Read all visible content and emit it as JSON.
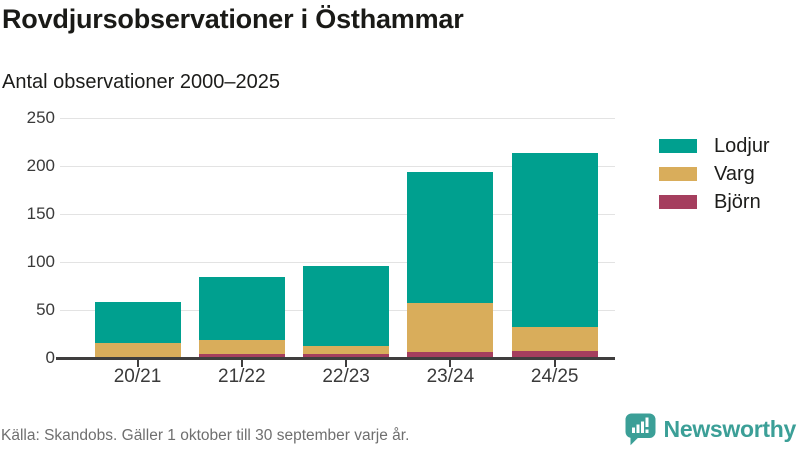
{
  "header": {
    "title": "Rovdjursobservationer i Östhammar",
    "subtitle": "Antal observationer 2000–2025"
  },
  "chart_data": {
    "type": "bar",
    "stacked": true,
    "title": "Rovdjursobservationer i Östhammar",
    "subtitle": "Antal observationer 2000–2025",
    "categories": [
      "20/21",
      "21/22",
      "22/23",
      "23/24",
      "24/25"
    ],
    "series": [
      {
        "name": "Lodjur",
        "color": "#00a08f",
        "values": [
          42,
          65,
          83,
          137,
          182
        ]
      },
      {
        "name": "Varg",
        "color": "#d9ad5b",
        "values": [
          15,
          15,
          9,
          51,
          25
        ]
      },
      {
        "name": "Björn",
        "color": "#a53e5e",
        "values": [
          1,
          4,
          4,
          6,
          7
        ]
      }
    ],
    "stack_order_bottom_to_top": [
      "Björn",
      "Varg",
      "Lodjur"
    ],
    "totals": [
      58,
      84,
      96,
      194,
      214
    ],
    "xlabel": "",
    "ylabel": "",
    "ylim": [
      0,
      250
    ],
    "yticks": [
      0,
      50,
      100,
      150,
      200,
      250
    ],
    "grid": true,
    "legend_position": "right"
  },
  "footer": {
    "source": "Källa: Skandobs. Gäller 1 oktober till 30 september varje år.",
    "brand": "Newsworthy"
  },
  "colors": {
    "lodjur": "#00a08f",
    "varg": "#d9ad5b",
    "bjorn": "#a53e5e",
    "brand_teal": "#3b9f97",
    "gridline": "#e3e3e3",
    "axis": "#3f3e3e"
  }
}
